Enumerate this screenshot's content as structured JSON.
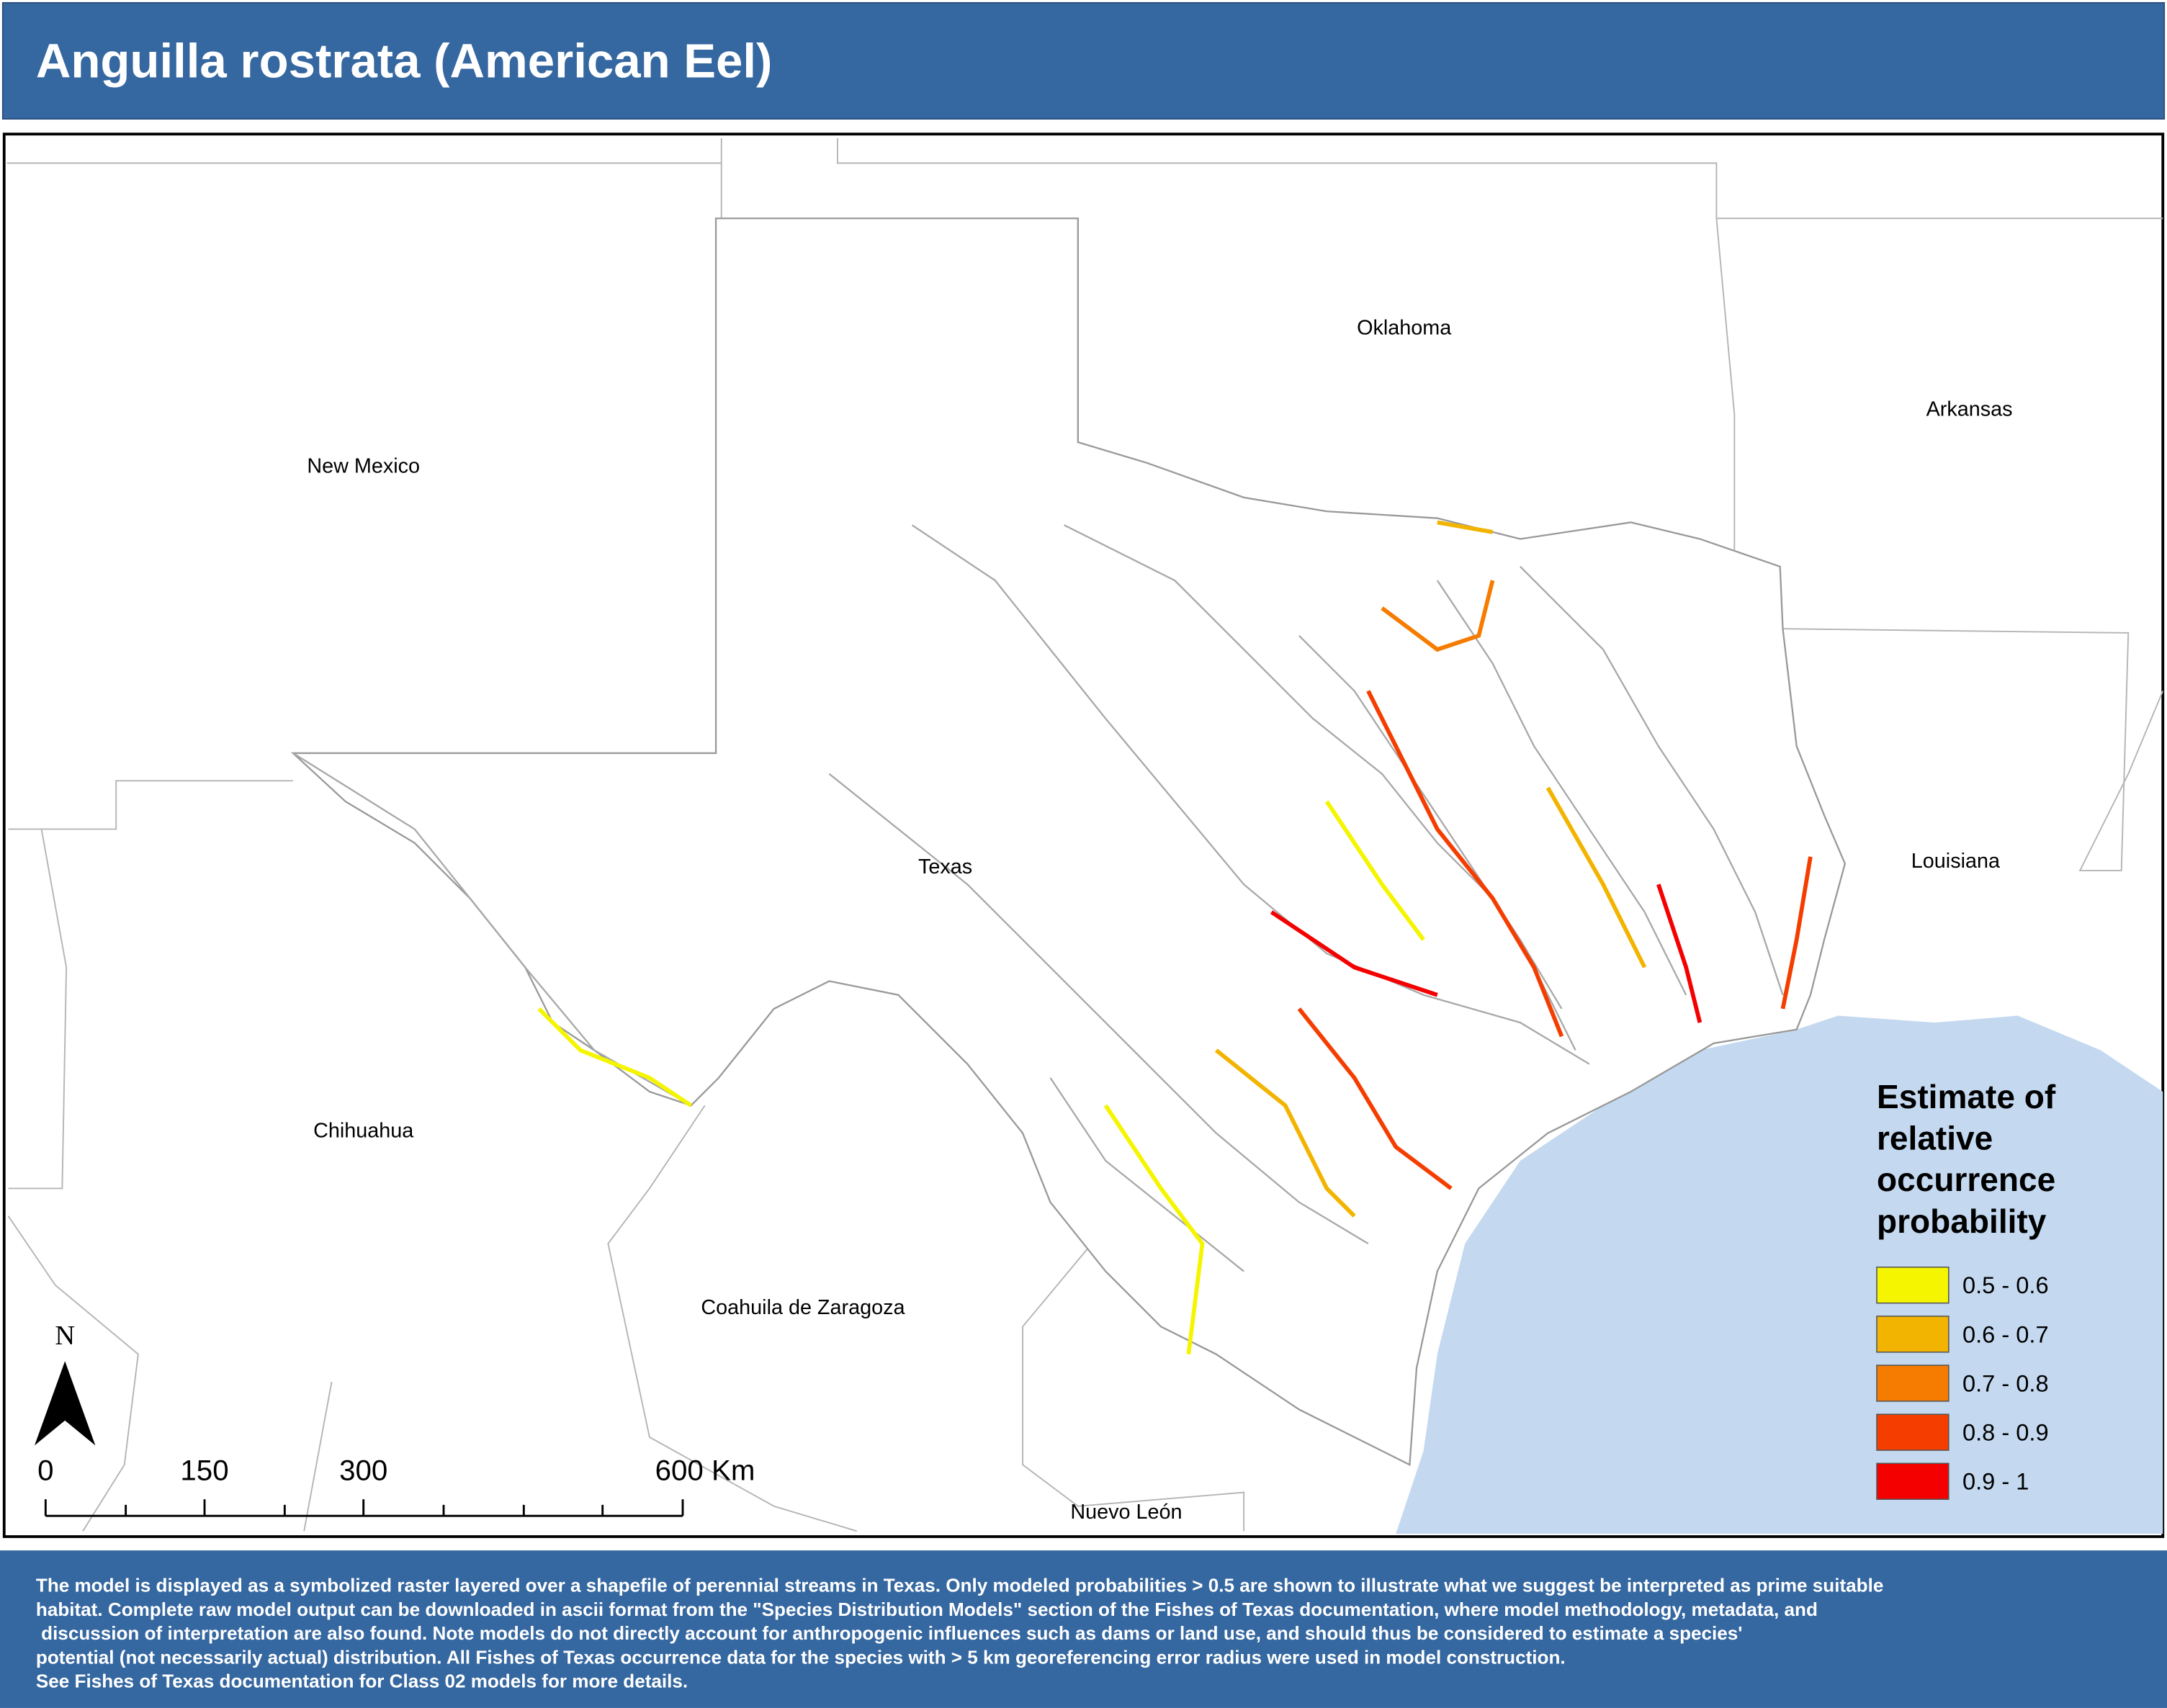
{
  "header": {
    "title": "Anguilla rostrata (American Eel)"
  },
  "map": {
    "labels": [
      "New Mexico",
      "Oklahoma",
      "Arkansas",
      "Texas",
      "Louisiana",
      "Chihuahua",
      "Coahuila de Zaragoza",
      "Nuevo León"
    ],
    "north": "N",
    "scale": [
      "0",
      "150",
      "300",
      "600 Km"
    ]
  },
  "legend": {
    "title": [
      "Estimate of",
      "relative",
      "occurrence",
      "probability"
    ],
    "items": [
      {
        "label": "0.5 - 0.6",
        "color": "#f5f500"
      },
      {
        "label": "0.6 - 0.7",
        "color": "#f2b400"
      },
      {
        "label": "0.7 - 0.8",
        "color": "#f57c00"
      },
      {
        "label": "0.8 - 0.9",
        "color": "#f53d00"
      },
      {
        "label": "0.9 - 1",
        "color": "#f50000"
      }
    ]
  },
  "footer": {
    "lines": [
      "The model is displayed as a symbolized raster layered over a shapefile of perennial streams in Texas. Only modeled probabilities > 0.5 are shown to illustrate what we suggest be interpreted as prime suitable",
      "habitat. Complete raw model output can be downloaded in ascii format from the \"Species Distribution Models\" section of the Fishes of Texas documentation, where model methodology, metadata, and",
      " discussion of interpretation are also found. Note models do not directly account for anthropogenic influences such as dams or land use, and should thus be considered to estimate a species'",
      "potential (not necessarily actual) distribution. All Fishes of Texas occurrence data for the species with > 5 km georeferencing error radius were used in model construction.",
      "See Fishes of Texas documentation for Class 02 models for more details."
    ]
  }
}
